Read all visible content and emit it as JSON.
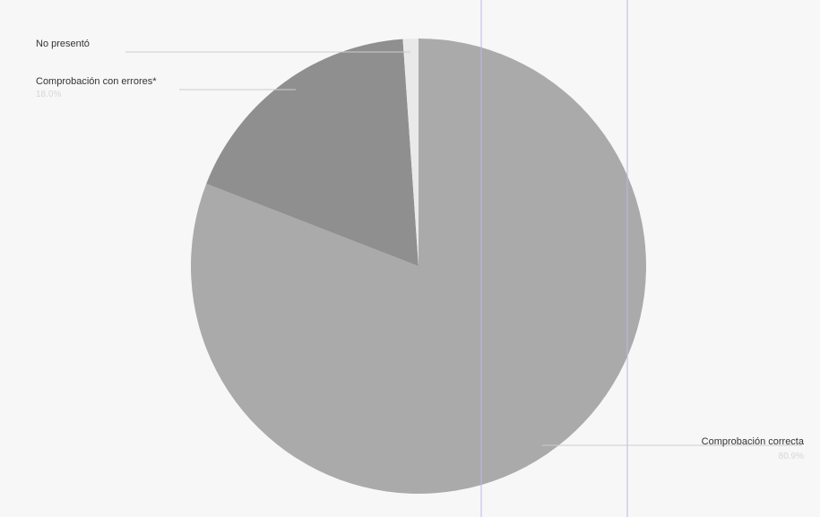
{
  "chart_data": {
    "type": "pie",
    "title": "",
    "slices": [
      {
        "label": "Comprobación correcta",
        "value": 80.9,
        "value_label": "80.9%",
        "color": "#aaaaaa"
      },
      {
        "label": "Comprobación con errores*",
        "value": 18.0,
        "value_label": "18.0%",
        "color": "#8f8f8f"
      },
      {
        "label": "No presentó",
        "value": 1.1,
        "value_label": "",
        "color": "#e9e9e9"
      }
    ],
    "start_angle_deg": 0,
    "direction": "clockwise",
    "legend": "none",
    "grid": false
  },
  "colors": {
    "background": "#f7f7f7",
    "leader_line": "#cccccc",
    "guide_line": "#b8b8e6"
  }
}
